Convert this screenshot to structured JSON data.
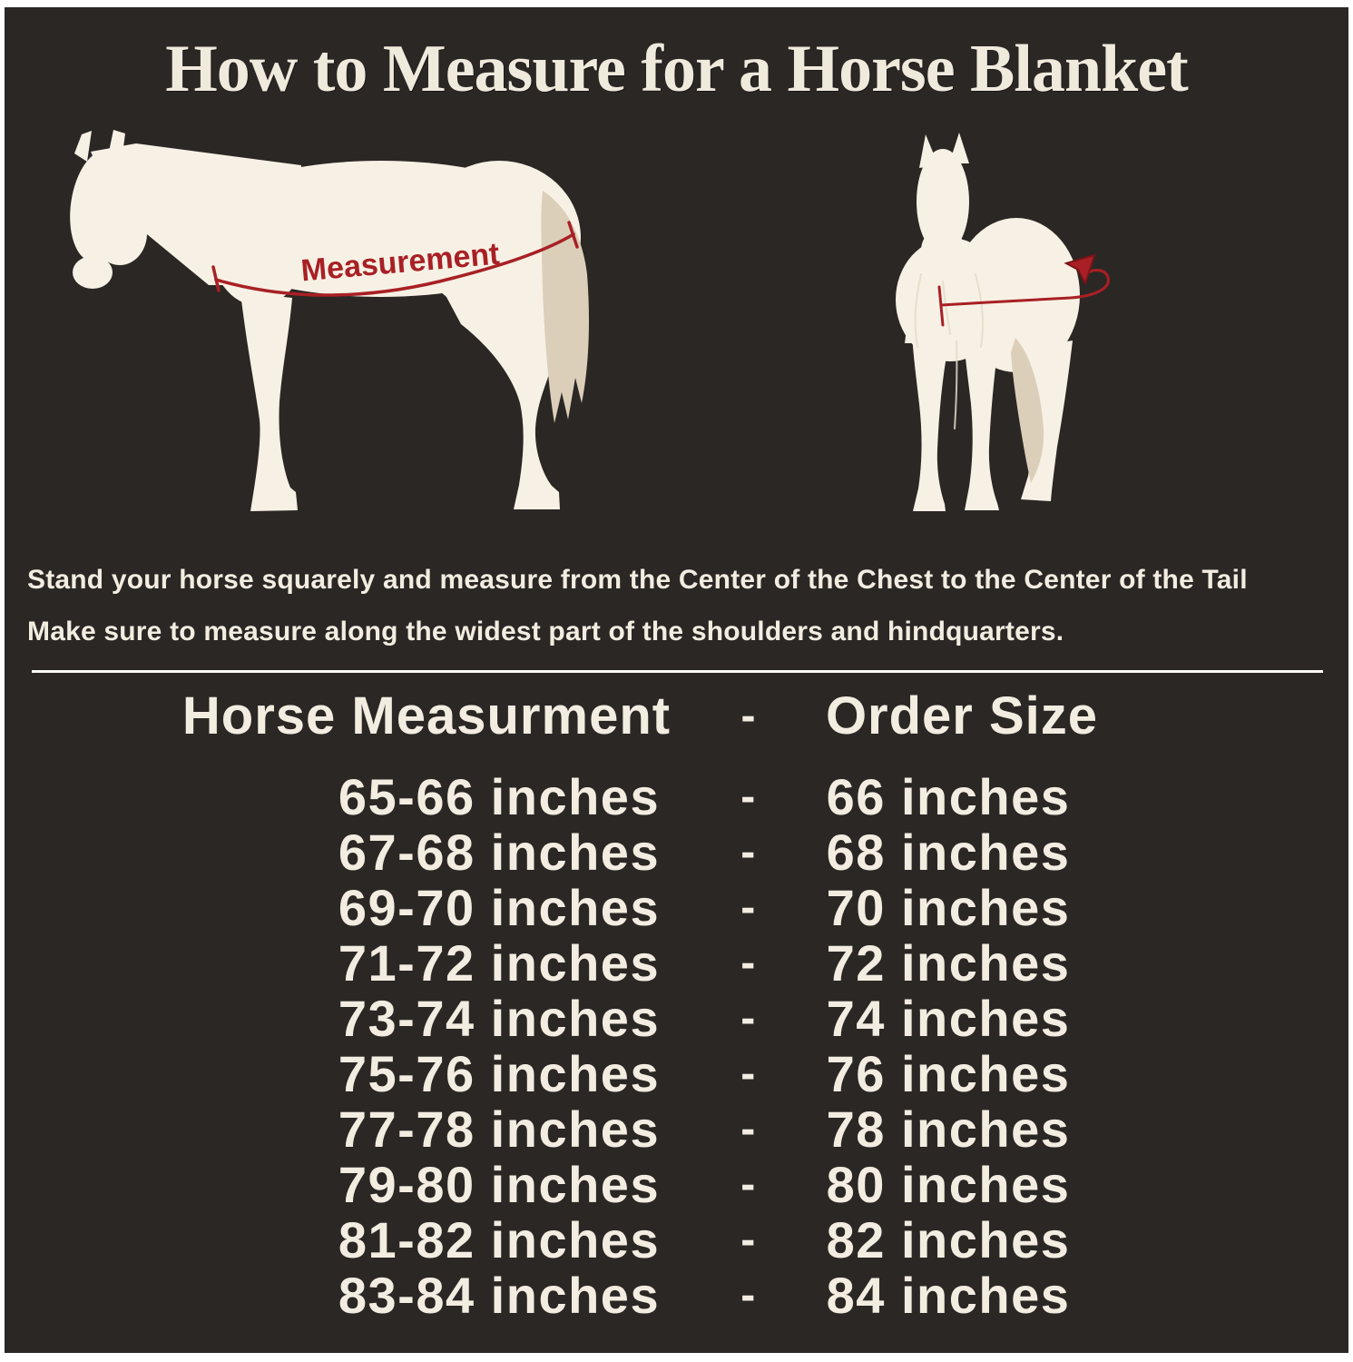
{
  "title": "How to Measure for a Horse Blanket",
  "colors": {
    "panel_background": "#2b2725",
    "border": "#ffffff",
    "cream_text": "#f3ede1",
    "horse_body": "#f7f1e5",
    "horse_tail": "#dccfb9",
    "accent_red": "#a82025"
  },
  "diagram": {
    "side_view_measurement_label": "Measurement"
  },
  "instructions": {
    "line1": "Stand your horse squarely and measure from the Center of the Chest to the Center of the Tail",
    "line2": "Make sure to measure along the widest part of the shoulders and hindquarters."
  },
  "size_table": {
    "header": {
      "measurement": "Horse Measurment",
      "separator": "-",
      "order_size": "Order Size"
    },
    "rows": [
      {
        "measurement": "65-66 inches",
        "separator": "-",
        "order_size": "66 inches"
      },
      {
        "measurement": "67-68 inches",
        "separator": "-",
        "order_size": "68 inches"
      },
      {
        "measurement": "69-70 inches",
        "separator": "-",
        "order_size": "70 inches"
      },
      {
        "measurement": "71-72 inches",
        "separator": "-",
        "order_size": "72 inches"
      },
      {
        "measurement": "73-74 inches",
        "separator": "-",
        "order_size": "74 inches"
      },
      {
        "measurement": "75-76 inches",
        "separator": "-",
        "order_size": "76 inches"
      },
      {
        "measurement": "77-78 inches",
        "separator": "-",
        "order_size": "78 inches"
      },
      {
        "measurement": "79-80 inches",
        "separator": "-",
        "order_size": "80 inches"
      },
      {
        "measurement": "81-82 inches",
        "separator": "-",
        "order_size": "82 inches"
      },
      {
        "measurement": "83-84 inches",
        "separator": "-",
        "order_size": "84 inches"
      }
    ]
  }
}
